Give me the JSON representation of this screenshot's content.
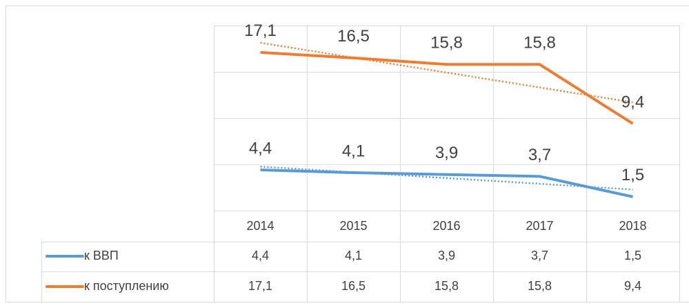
{
  "chart_data": {
    "type": "line",
    "categories": [
      "2014",
      "2015",
      "2016",
      "2017",
      "2018"
    ],
    "series": [
      {
        "name": "к ВВП",
        "color": "#5b9bd5",
        "values": [
          4.4,
          4.1,
          3.9,
          3.7,
          1.5
        ],
        "value_labels": [
          "4,4",
          "4,1",
          "3,9",
          "3,7",
          "1,5"
        ]
      },
      {
        "name": "к поступлению",
        "color": "#ed7d31",
        "values": [
          17.1,
          16.5,
          15.8,
          15.8,
          9.4
        ],
        "value_labels": [
          "17,1",
          "16,5",
          "15,8",
          "15,8",
          "9,4"
        ]
      }
    ],
    "ylim": [
      0,
      20
    ],
    "yticks": [
      0,
      5,
      10,
      15,
      20
    ],
    "grid": true,
    "trendline": true,
    "data_table": true
  }
}
